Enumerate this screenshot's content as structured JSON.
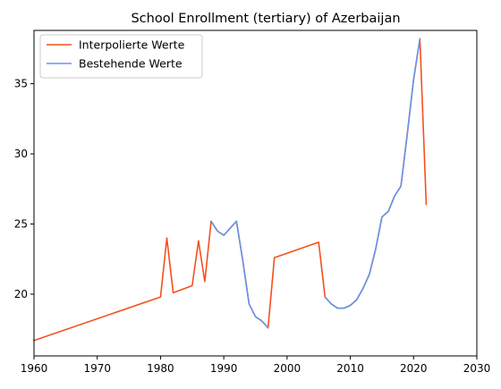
{
  "chart_data": {
    "type": "line",
    "title": "School Enrollment (tertiary) of Azerbaijan",
    "xlabel": "",
    "ylabel": "",
    "xlim": [
      1960,
      2030
    ],
    "ylim": [
      15.6,
      38.8
    ],
    "xticks": [
      1960,
      1970,
      1980,
      1990,
      2000,
      2010,
      2020,
      2030
    ],
    "yticks": [
      20,
      25,
      30,
      35
    ],
    "grid": false,
    "legend_position": "top-left",
    "series": [
      {
        "name": "Interpolierte Werte",
        "color": "#f4511e",
        "x": [
          1960,
          1980,
          1981,
          1982,
          1985,
          1986,
          1987,
          1988,
          1989,
          1990,
          1991,
          1992,
          1993,
          1994,
          1995,
          1996,
          1997,
          1998,
          2005,
          2006,
          2007,
          2008,
          2009,
          2010,
          2011,
          2012,
          2013,
          2014,
          2015,
          2016,
          2017,
          2018,
          2019,
          2020,
          2021,
          2022
        ],
        "y": [
          16.7,
          19.8,
          24.0,
          20.1,
          20.6,
          23.8,
          20.9,
          25.2,
          24.5,
          24.2,
          24.7,
          25.2,
          22.4,
          19.3,
          18.4,
          18.1,
          17.6,
          22.6,
          23.7,
          19.8,
          19.3,
          19.0,
          19.0,
          19.2,
          19.6,
          20.4,
          21.4,
          23.2,
          25.5,
          25.9,
          27.0,
          27.7,
          31.4,
          35.3,
          38.2,
          26.4
        ]
      },
      {
        "name": "Bestehende Werte",
        "color": "#6495ed",
        "x": [
          1988,
          1989,
          1990,
          1991,
          1992,
          1993,
          1994,
          1995,
          1996,
          1997,
          null,
          2006,
          2007,
          2008,
          2009,
          2010,
          2011,
          2012,
          2013,
          2014,
          2015,
          2016,
          2017,
          2018,
          2019,
          2020,
          2021
        ],
        "y": [
          25.2,
          24.5,
          24.2,
          24.7,
          25.2,
          22.4,
          19.3,
          18.4,
          18.1,
          17.6,
          null,
          19.8,
          19.3,
          19.0,
          19.0,
          19.2,
          19.6,
          20.4,
          21.4,
          23.2,
          25.5,
          25.9,
          27.0,
          27.7,
          31.4,
          35.3,
          38.2
        ]
      }
    ]
  }
}
